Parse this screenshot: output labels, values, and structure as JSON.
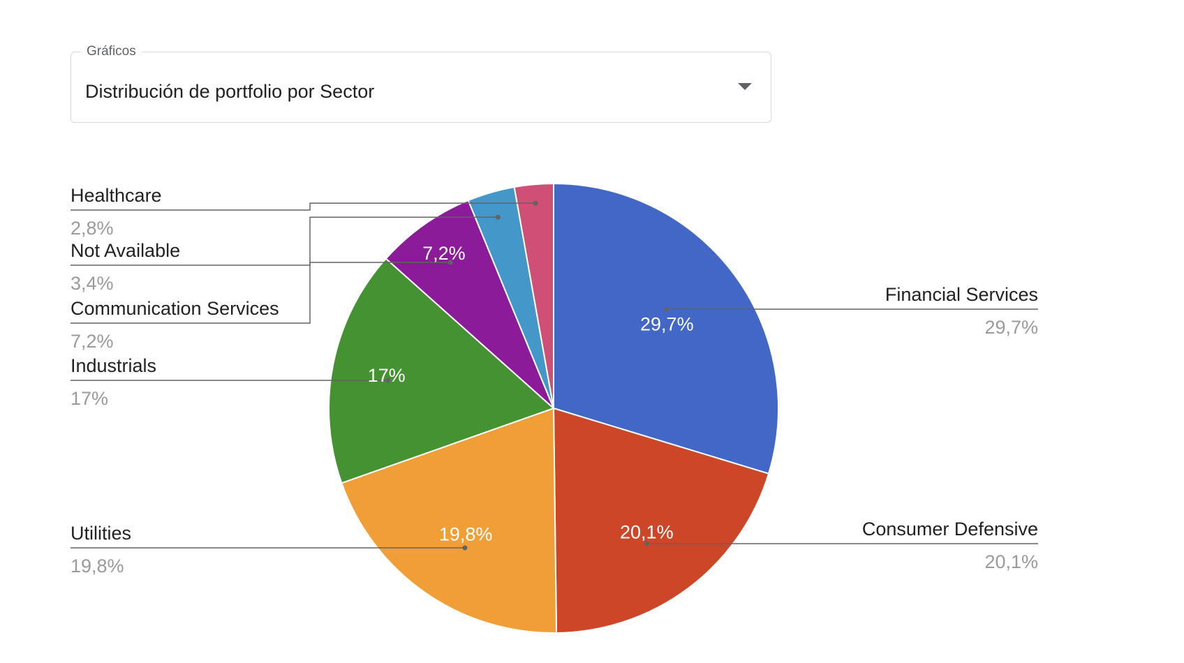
{
  "select": {
    "label": "Gráficos",
    "value": "Distribución de portfolio por Sector"
  },
  "chart_data": {
    "type": "pie",
    "start_angle_deg": 0,
    "direction": "clockwise",
    "legend": "labeled",
    "slices": [
      {
        "label": "Financial Services",
        "value": 29.7,
        "display": "29,7%",
        "color": "#4267c7"
      },
      {
        "label": "Consumer Defensive",
        "value": 20.1,
        "display": "20,1%",
        "color": "#cc4627"
      },
      {
        "label": "Utilities",
        "value": 19.8,
        "display": "19,8%",
        "color": "#f09f38"
      },
      {
        "label": "Industrials",
        "value": 17.0,
        "display": "17%",
        "color": "#449232"
      },
      {
        "label": "Communication Services",
        "value": 7.2,
        "display": "7,2%",
        "color": "#8b1b99"
      },
      {
        "label": "Not Available",
        "value": 3.4,
        "display": "3,4%",
        "color": "#4397c9"
      },
      {
        "label": "Healthcare",
        "value": 2.8,
        "display": "2,8%",
        "color": "#d04f77"
      }
    ]
  }
}
